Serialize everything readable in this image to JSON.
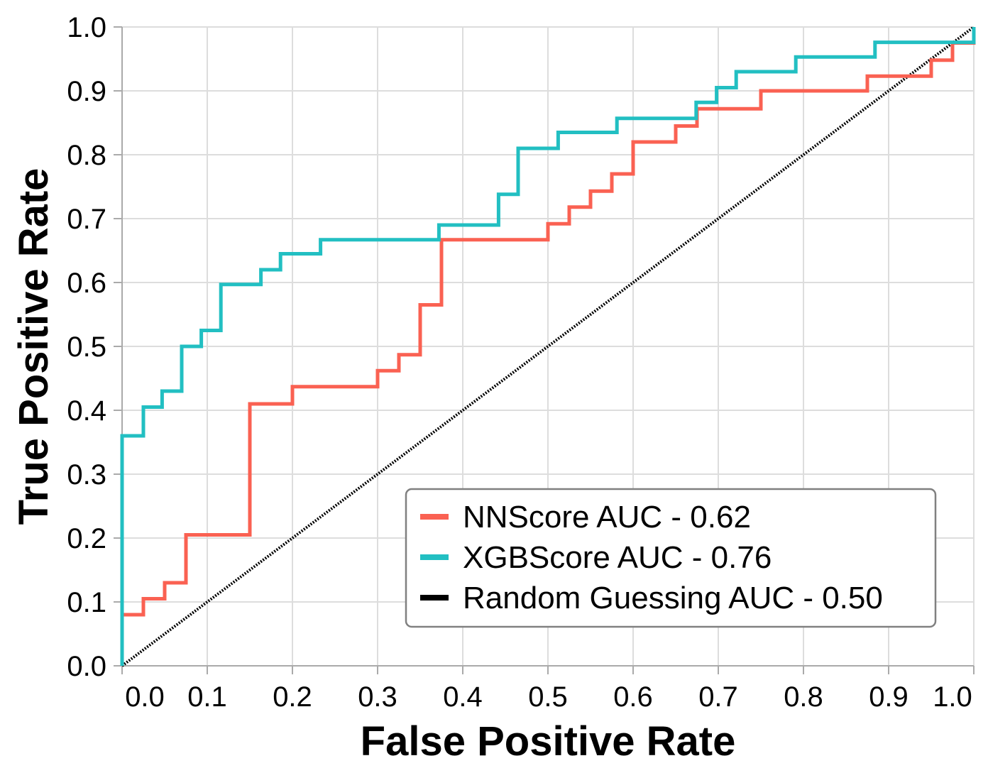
{
  "chart_data": {
    "type": "line",
    "xlabel": "False Positive Rate",
    "ylabel": "True Positive Rate",
    "xlim": [
      0.0,
      1.0
    ],
    "ylim": [
      0.0,
      1.0
    ],
    "x_ticks": [
      "0.0",
      "0.1",
      "0.2",
      "0.3",
      "0.4",
      "0.5",
      "0.6",
      "0.7",
      "0.8",
      "0.9",
      "1.0"
    ],
    "y_ticks": [
      "0.0",
      "0.1",
      "0.2",
      "0.3",
      "0.4",
      "0.5",
      "0.6",
      "0.7",
      "0.8",
      "0.9",
      "1.0"
    ],
    "grid": true,
    "legend_position": "lower-right",
    "series": [
      {
        "name": "NNScore AUC - 0.62",
        "color": "#fa6152",
        "style": "step",
        "x": [
          0.0,
          0.0,
          0.025,
          0.025,
          0.05,
          0.05,
          0.075,
          0.075,
          0.15,
          0.15,
          0.2,
          0.2,
          0.3,
          0.3,
          0.325,
          0.325,
          0.35,
          0.35,
          0.375,
          0.375,
          0.5,
          0.5,
          0.525,
          0.525,
          0.55,
          0.55,
          0.575,
          0.575,
          0.6,
          0.6,
          0.625,
          0.625,
          0.65,
          0.65,
          0.675,
          0.675,
          0.7,
          0.7,
          0.75,
          0.75,
          0.875,
          0.875,
          0.925,
          0.925,
          0.95,
          0.95,
          0.975,
          0.975,
          1.0,
          1.0
        ],
        "y": [
          0.0,
          0.08,
          0.08,
          0.105,
          0.105,
          0.13,
          0.13,
          0.205,
          0.205,
          0.41,
          0.41,
          0.437,
          0.437,
          0.462,
          0.462,
          0.487,
          0.487,
          0.565,
          0.565,
          0.667,
          0.667,
          0.692,
          0.692,
          0.718,
          0.718,
          0.743,
          0.743,
          0.77,
          0.77,
          0.82,
          0.82,
          0.82,
          0.82,
          0.845,
          0.845,
          0.872,
          0.872,
          0.872,
          0.872,
          0.9,
          0.9,
          0.923,
          0.923,
          0.923,
          0.923,
          0.948,
          0.948,
          0.975,
          0.975,
          1.0
        ]
      },
      {
        "name": "XGBScore AUC - 0.76",
        "color": "#22bfc2",
        "style": "step",
        "x": [
          0.0,
          0.0,
          0.025,
          0.025,
          0.047,
          0.047,
          0.07,
          0.07,
          0.093,
          0.093,
          0.116,
          0.116,
          0.163,
          0.163,
          0.186,
          0.186,
          0.233,
          0.233,
          0.372,
          0.372,
          0.442,
          0.442,
          0.465,
          0.465,
          0.512,
          0.512,
          0.581,
          0.581,
          0.674,
          0.674,
          0.698,
          0.698,
          0.721,
          0.721,
          0.791,
          0.791,
          0.884,
          0.884,
          1.0,
          1.0
        ],
        "y": [
          0.0,
          0.36,
          0.36,
          0.405,
          0.405,
          0.43,
          0.43,
          0.5,
          0.5,
          0.525,
          0.525,
          0.597,
          0.597,
          0.62,
          0.62,
          0.645,
          0.645,
          0.667,
          0.667,
          0.69,
          0.69,
          0.738,
          0.738,
          0.81,
          0.81,
          0.835,
          0.835,
          0.857,
          0.857,
          0.882,
          0.882,
          0.905,
          0.905,
          0.93,
          0.93,
          0.953,
          0.953,
          0.976,
          0.976,
          1.0
        ]
      },
      {
        "name": "Random Guessing AUC - 0.50",
        "color": "#000000",
        "style": "dotted",
        "x": [
          0.0,
          1.0
        ],
        "y": [
          0.0,
          1.0
        ]
      }
    ]
  }
}
